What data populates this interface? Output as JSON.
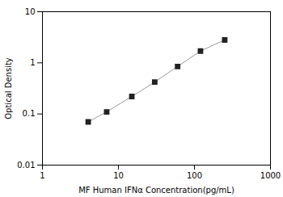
{
  "chart_data": {
    "type": "line",
    "xlabel": "MF Human IFNα Concentration(pg/mL)",
    "ylabel": "Optical Density",
    "x": [
      4,
      7,
      15,
      30,
      60,
      120,
      250
    ],
    "series": [
      {
        "type": "line",
        "color": "#999999",
        "values": [
          0.07,
          0.11,
          0.22,
          0.42,
          0.85,
          1.7,
          2.8
        ]
      },
      {
        "type": "scatter",
        "color": "#222222",
        "marker": "square",
        "values": [
          0.07,
          0.11,
          0.22,
          0.42,
          0.85,
          1.7,
          2.8
        ]
      }
    ],
    "xlim": [
      1,
      1000
    ],
    "ylim": [
      0.01,
      10
    ],
    "xticks": [
      1,
      10,
      100,
      1000
    ],
    "yticks": [
      0.01,
      0.1,
      1,
      10
    ],
    "log": true,
    "grid": false
  }
}
